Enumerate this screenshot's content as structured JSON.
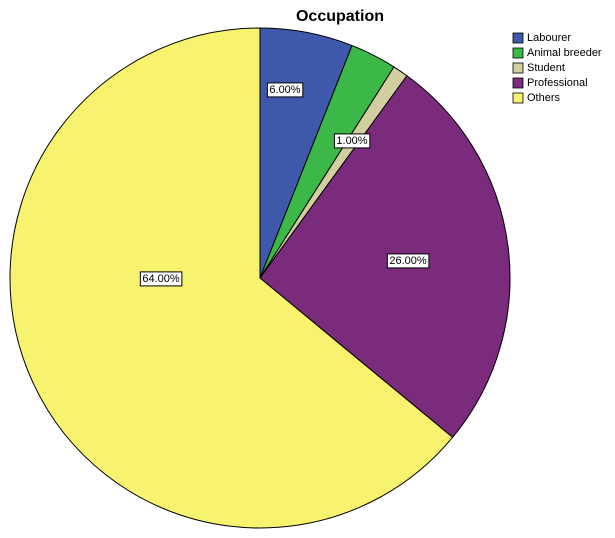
{
  "chart_data": {
    "type": "pie",
    "title": "Occupation",
    "categories": [
      "Labourer",
      "Animal breeder",
      "Student",
      "Professional",
      "Others"
    ],
    "values": [
      6,
      3,
      1,
      26,
      64
    ],
    "value_labels": [
      "6.00%",
      null,
      "1.00%",
      "26.00%",
      "64.00%"
    ],
    "colors": [
      "#3e58ac",
      "#3cb849",
      "#d1cfa0",
      "#7b2b7b",
      "#f7f36f"
    ],
    "legend": "top-right"
  }
}
